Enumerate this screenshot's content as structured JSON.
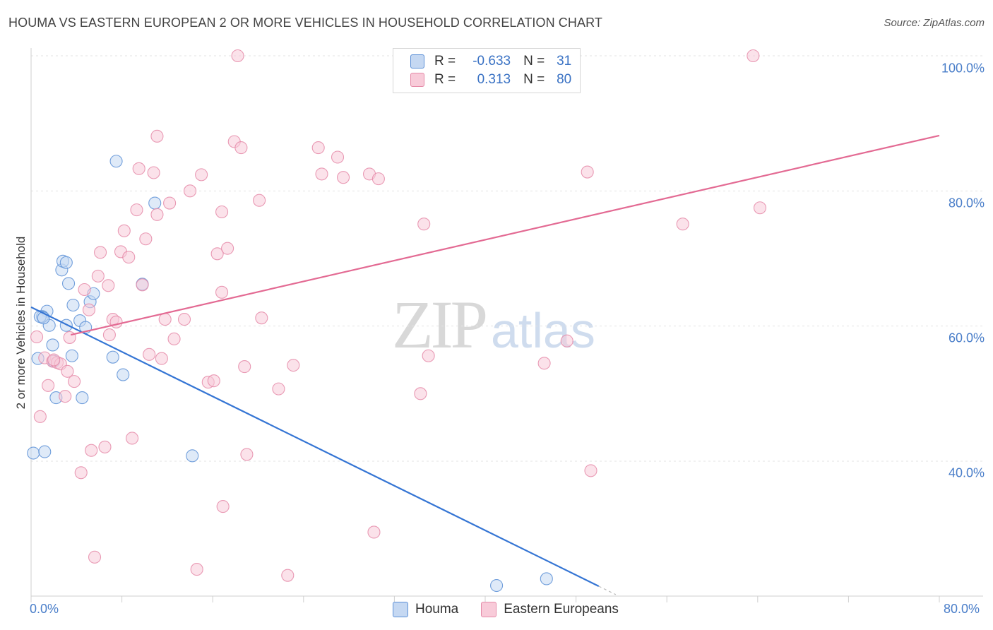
{
  "title": "HOUMA VS EASTERN EUROPEAN 2 OR MORE VEHICLES IN HOUSEHOLD CORRELATION CHART",
  "source": "Source: ZipAtlas.com",
  "watermark": {
    "zip": "ZIP",
    "atlas": "atlas"
  },
  "colors": {
    "houma": "#5b8fd6",
    "houma_fill": "#c5d8f2",
    "eastern": "#e58aa8",
    "eastern_fill": "#f8cbd9",
    "houma_line": "#3575d4",
    "eastern_line": "#e36a93",
    "tick_text": "#4a7ec9"
  },
  "legend": {
    "rows": [
      {
        "r_label": "R =",
        "r_value": "-0.633",
        "n_label": "N =",
        "n_value": "31"
      },
      {
        "r_label": "R =",
        "r_value": "0.313",
        "n_label": "N =",
        "n_value": "80"
      }
    ],
    "bottom": [
      "Houma",
      "Eastern Europeans"
    ]
  },
  "chart_data": {
    "type": "scatter",
    "xlabel": "",
    "ylabel": "2 or more Vehicles in Household",
    "xlim": [
      0,
      80
    ],
    "ylim": [
      20,
      102
    ],
    "x_tick_labels": [
      "0.0%",
      "80.0%"
    ],
    "y_ticks": [
      40,
      60,
      80,
      100
    ],
    "y_tick_labels": [
      "40.0%",
      "60.0%",
      "80.0%",
      "100.0%"
    ],
    "grid": true,
    "series": [
      {
        "name": "Houma",
        "r": -0.633,
        "n": 31,
        "trend": [
          [
            0,
            62.8
          ],
          [
            50,
            21.5
          ]
        ],
        "points": [
          [
            0.2,
            41.2
          ],
          [
            1.2,
            41.4
          ],
          [
            0.6,
            55.2
          ],
          [
            1.4,
            62.2
          ],
          [
            1.6,
            60.1
          ],
          [
            1.9,
            57.2
          ],
          [
            2.0,
            54.8
          ],
          [
            2.2,
            49.4
          ],
          [
            1.0,
            61.4
          ],
          [
            2.7,
            68.3
          ],
          [
            2.8,
            69.6
          ],
          [
            3.1,
            69.4
          ],
          [
            3.3,
            66.3
          ],
          [
            3.1,
            60.1
          ],
          [
            3.7,
            63.1
          ],
          [
            3.6,
            55.6
          ],
          [
            4.3,
            60.8
          ],
          [
            4.5,
            49.4
          ],
          [
            4.8,
            59.8
          ],
          [
            5.2,
            63.6
          ],
          [
            5.5,
            64.8
          ],
          [
            7.2,
            55.4
          ],
          [
            8.1,
            52.8
          ],
          [
            7.5,
            84.4
          ],
          [
            9.8,
            66.2
          ],
          [
            10.9,
            78.2
          ],
          [
            14.2,
            40.8
          ],
          [
            41.0,
            21.6
          ],
          [
            45.4,
            22.6
          ],
          [
            0.8,
            61.4
          ],
          [
            1.1,
            61.2
          ]
        ]
      },
      {
        "name": "Eastern Europeans",
        "r": 0.313,
        "n": 80,
        "trend": [
          [
            3.5,
            58.7
          ],
          [
            80,
            88.2
          ]
        ],
        "points": [
          [
            0.5,
            58.4
          ],
          [
            0.8,
            46.6
          ],
          [
            1.2,
            55.3
          ],
          [
            1.5,
            51.2
          ],
          [
            1.9,
            54.8
          ],
          [
            2.3,
            54.6
          ],
          [
            2.6,
            54.4
          ],
          [
            3.0,
            49.6
          ],
          [
            3.2,
            53.3
          ],
          [
            3.4,
            58.3
          ],
          [
            3.8,
            51.8
          ],
          [
            4.4,
            38.3
          ],
          [
            4.7,
            65.4
          ],
          [
            5.1,
            62.4
          ],
          [
            5.3,
            41.6
          ],
          [
            5.6,
            25.8
          ],
          [
            5.9,
            67.4
          ],
          [
            6.1,
            70.9
          ],
          [
            6.5,
            42.1
          ],
          [
            6.8,
            66.0
          ],
          [
            7.2,
            61.0
          ],
          [
            7.5,
            60.6
          ],
          [
            7.9,
            71.0
          ],
          [
            8.2,
            74.1
          ],
          [
            8.6,
            70.2
          ],
          [
            8.9,
            43.4
          ],
          [
            9.3,
            77.2
          ],
          [
            9.5,
            83.3
          ],
          [
            9.8,
            66.1
          ],
          [
            10.1,
            72.9
          ],
          [
            10.4,
            55.8
          ],
          [
            10.8,
            82.7
          ],
          [
            11.1,
            76.5
          ],
          [
            11.5,
            55.2
          ],
          [
            11.8,
            61.0
          ],
          [
            12.2,
            78.2
          ],
          [
            12.6,
            58.1
          ],
          [
            13.5,
            61.0
          ],
          [
            14.0,
            80.0
          ],
          [
            14.6,
            24.0
          ],
          [
            15.0,
            82.4
          ],
          [
            15.6,
            51.7
          ],
          [
            16.1,
            51.9
          ],
          [
            16.4,
            70.7
          ],
          [
            16.8,
            65.0
          ],
          [
            16.9,
            33.3
          ],
          [
            17.3,
            71.5
          ],
          [
            17.9,
            87.3
          ],
          [
            18.2,
            100.0
          ],
          [
            18.5,
            86.4
          ],
          [
            18.8,
            54.0
          ],
          [
            19.0,
            41.0
          ],
          [
            20.1,
            78.6
          ],
          [
            20.3,
            61.2
          ],
          [
            21.8,
            50.7
          ],
          [
            22.6,
            23.1
          ],
          [
            23.1,
            54.2
          ],
          [
            25.3,
            86.4
          ],
          [
            25.6,
            82.5
          ],
          [
            27.0,
            85.0
          ],
          [
            27.5,
            82.0
          ],
          [
            29.8,
            82.5
          ],
          [
            30.6,
            81.8
          ],
          [
            30.2,
            29.5
          ],
          [
            34.3,
            50.0
          ],
          [
            34.6,
            75.1
          ],
          [
            35.0,
            55.6
          ],
          [
            35.9,
            100.0
          ],
          [
            36.8,
            100.0
          ],
          [
            45.2,
            54.5
          ],
          [
            47.2,
            57.8
          ],
          [
            49.0,
            82.8
          ],
          [
            49.3,
            38.6
          ],
          [
            57.4,
            75.1
          ],
          [
            63.6,
            100.0
          ],
          [
            64.2,
            77.5
          ],
          [
            2.0,
            55.0
          ],
          [
            6.9,
            58.7
          ],
          [
            11.1,
            88.1
          ],
          [
            16.8,
            76.9
          ]
        ]
      }
    ]
  }
}
